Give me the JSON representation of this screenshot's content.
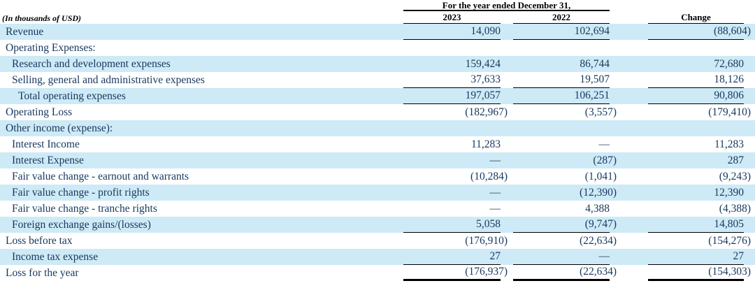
{
  "table": {
    "unit_label": "(In thousands of USD)",
    "period_header": "For the year ended December 31,",
    "columns": [
      "2023",
      "2022",
      "Change"
    ],
    "colors": {
      "stripe": "#cdeaf6",
      "body_text": "#17375e",
      "header_text": "#000000",
      "rule": "#000000"
    },
    "rows": [
      {
        "label": "Revenue",
        "indent": 0,
        "shaded": true,
        "values": [
          "14,090",
          "102,694",
          "(88,604)"
        ],
        "underline": "single"
      },
      {
        "label": "Operating Expenses:",
        "indent": 0,
        "shaded": false,
        "values": [
          "",
          "",
          ""
        ]
      },
      {
        "label": "Research and development expenses",
        "indent": 1,
        "shaded": true,
        "values": [
          "159,424",
          "86,744",
          "72,680"
        ]
      },
      {
        "label": "Selling, general and administrative expenses",
        "indent": 1,
        "shaded": false,
        "values": [
          "37,633",
          "19,507",
          "18,126"
        ],
        "underline": "single"
      },
      {
        "label": "Total operating expenses",
        "indent": 2,
        "shaded": true,
        "values": [
          "197,057",
          "106,251",
          "90,806"
        ],
        "underline": "single"
      },
      {
        "label": "Operating Loss",
        "indent": 0,
        "shaded": false,
        "values": [
          "(182,967)",
          "(3,557)",
          "(179,410)"
        ]
      },
      {
        "label": "Other income (expense):",
        "indent": 0,
        "shaded": true,
        "values": [
          "",
          "",
          ""
        ]
      },
      {
        "label": "Interest Income",
        "indent": 1,
        "shaded": false,
        "values": [
          "11,283",
          "—",
          "11,283"
        ]
      },
      {
        "label": "Interest Expense",
        "indent": 1,
        "shaded": true,
        "values": [
          "—",
          "(287)",
          "287"
        ]
      },
      {
        "label": "Fair value change - earnout and warrants",
        "indent": 1,
        "shaded": false,
        "values": [
          "(10,284)",
          "(1,041)",
          "(9,243)"
        ]
      },
      {
        "label": "Fair value change - profit rights",
        "indent": 1,
        "shaded": true,
        "values": [
          "—",
          "(12,390)",
          "12,390"
        ]
      },
      {
        "label": "Fair value change - tranche rights",
        "indent": 1,
        "shaded": false,
        "values": [
          "—",
          "4,388",
          "(4,388)"
        ]
      },
      {
        "label": "Foreign exchange gains/(losses)",
        "indent": 1,
        "shaded": true,
        "values": [
          "5,058",
          "(9,747)",
          "14,805"
        ],
        "underline": "single"
      },
      {
        "label": "Loss before tax",
        "indent": 0,
        "shaded": false,
        "values": [
          "(176,910)",
          "(22,634)",
          "(154,276)"
        ]
      },
      {
        "label": "Income tax expense",
        "indent": 1,
        "shaded": true,
        "values": [
          "27",
          "—",
          "27"
        ],
        "underline": "single"
      },
      {
        "label": "Loss for the year",
        "indent": 0,
        "shaded": false,
        "values": [
          "(176,937)",
          "(22,634)",
          "(154,303)"
        ],
        "underline": "thick"
      }
    ]
  }
}
